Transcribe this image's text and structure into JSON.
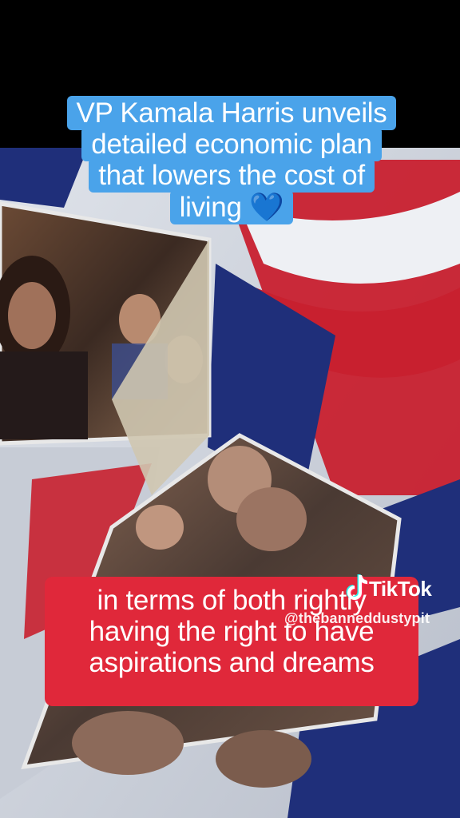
{
  "caption_top": {
    "lines": [
      "VP Kamala Harris unveils",
      "detailed economic plan",
      "that lowers the cost of",
      "living"
    ],
    "emoji": "💙"
  },
  "caption_bottom": {
    "lines": [
      "in terms of both rightly",
      "having the right to have",
      "aspirations and dreams"
    ]
  },
  "watermark": {
    "brand": "TikTok",
    "handle": "@thebanneddustypit"
  },
  "colors": {
    "caption_top_bg": "#4aa3ea",
    "caption_bottom_bg": "#e0283a",
    "flag_red": "#c8202f",
    "flag_white": "#eef0f4",
    "flag_blue": "#1f2f7a"
  }
}
